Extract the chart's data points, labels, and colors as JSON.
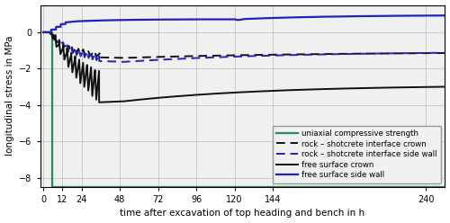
{
  "title": "",
  "xlabel": "time after excavation of top heading and bench in h",
  "ylabel": "longitudinal stress in MPa",
  "xlim": [
    -2,
    252
  ],
  "ylim": [
    -8.5,
    1.5
  ],
  "yticks": [
    0,
    -2,
    -4,
    -6,
    -8
  ],
  "xticks": [
    0,
    12,
    24,
    48,
    72,
    96,
    120,
    144,
    240
  ],
  "grid_color": "#bbbbbb",
  "background_color": "#f0f0f0",
  "series": {
    "free_surface_side_wall": {
      "color": "#2222bb",
      "linestyle": "solid",
      "linewidth": 1.6,
      "label": "free surface side wall"
    },
    "free_surface_crown": {
      "color": "#111111",
      "linestyle": "solid",
      "linewidth": 1.4,
      "label": "free surface crown"
    },
    "rock_shotcrete_side_wall": {
      "color": "#2222bb",
      "linestyle": "dashed",
      "linewidth": 1.4,
      "label": "rock – shotcrete interface side wall"
    },
    "rock_shotcrete_crown": {
      "color": "#111111",
      "linestyle": "dashed",
      "linewidth": 1.4,
      "label": "rock – shotcrete interface crown"
    },
    "uniaxial": {
      "color": "#2e8b57",
      "linestyle": "solid",
      "linewidth": 1.6,
      "label": "uniaxial compressive strength"
    }
  }
}
